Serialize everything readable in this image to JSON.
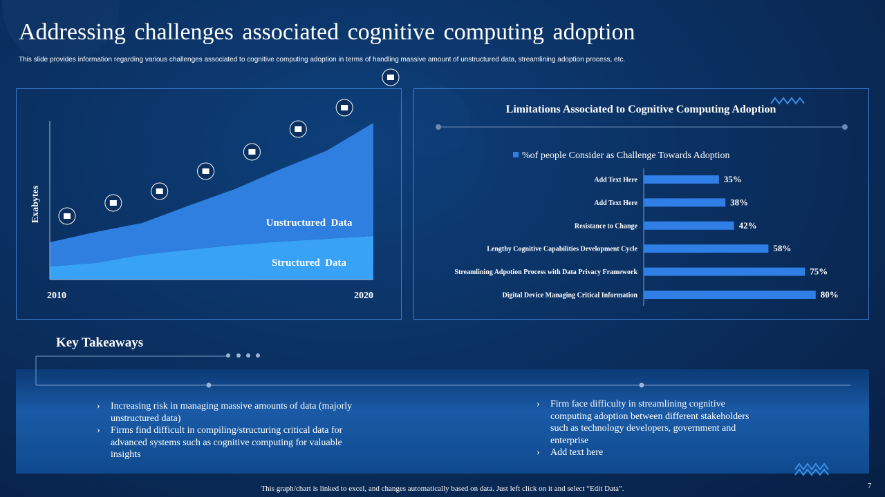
{
  "header": {
    "title": "Addressing challenges associated cognitive computing adoption",
    "subtitle": "This slide provides information regarding various challenges associated to cognitive computing adoption in terms of handling massive amount of unstructured data, streamlining adoption process, etc."
  },
  "chart_data": [
    {
      "type": "area",
      "stacked": true,
      "ylabel": "Exabytes",
      "categories": [
        "2010",
        null,
        null,
        null,
        null,
        null,
        null,
        "2020"
      ],
      "ylim": [
        0,
        230
      ],
      "series": [
        {
          "name": "Structured  Data",
          "color": "#38a2f6",
          "values": [
            19,
            24,
            36,
            43,
            50,
            55,
            59,
            63
          ]
        },
        {
          "name": "Unstructured  Data",
          "color": "#2e7fe0",
          "values": [
            35,
            45,
            46,
            64,
            81,
            105,
            128,
            164
          ]
        }
      ]
    },
    {
      "type": "hbar",
      "title": "Limitations Associated to Cognitive Computing Adoption",
      "categories": [
        "Add Text Here",
        "Add Text Here",
        "Resistance to Change",
        "Lengthy Cognitive Capabilities Development Cycle",
        "Streamlining Adpotion Process with Data Privacy Framework",
        "Digital Device Managing Critical Information"
      ],
      "xlim": [
        0,
        100
      ],
      "series": [
        {
          "name": "%of people Consider as Challenge Towards Adoption",
          "color": "#2f7fe6",
          "values": [
            35,
            38,
            42,
            58,
            75,
            80
          ],
          "value_labels": [
            "35%",
            "38%",
            "42%",
            "58%",
            "75%",
            "80%"
          ]
        }
      ],
      "legend": "top"
    }
  ],
  "takeaways": {
    "title": "Key Takeaways",
    "left": [
      "Increasing risk in managing massive amounts of data (majorly unstructured data)",
      "Firms find difficult in compiling/structuring  critical data for advanced systems such as cognitive computing for valuable insights"
    ],
    "right": [
      "Firm face difficulty in streamlining cognitive computing adoption  between different stakeholders such as technology developers, government and enterprise",
      "Add text here"
    ]
  },
  "footer": {
    "note": "This graph/chart is linked to excel,  and changes automatically based on data. Just left click on it and select “Edit Data”.",
    "page": "7"
  }
}
